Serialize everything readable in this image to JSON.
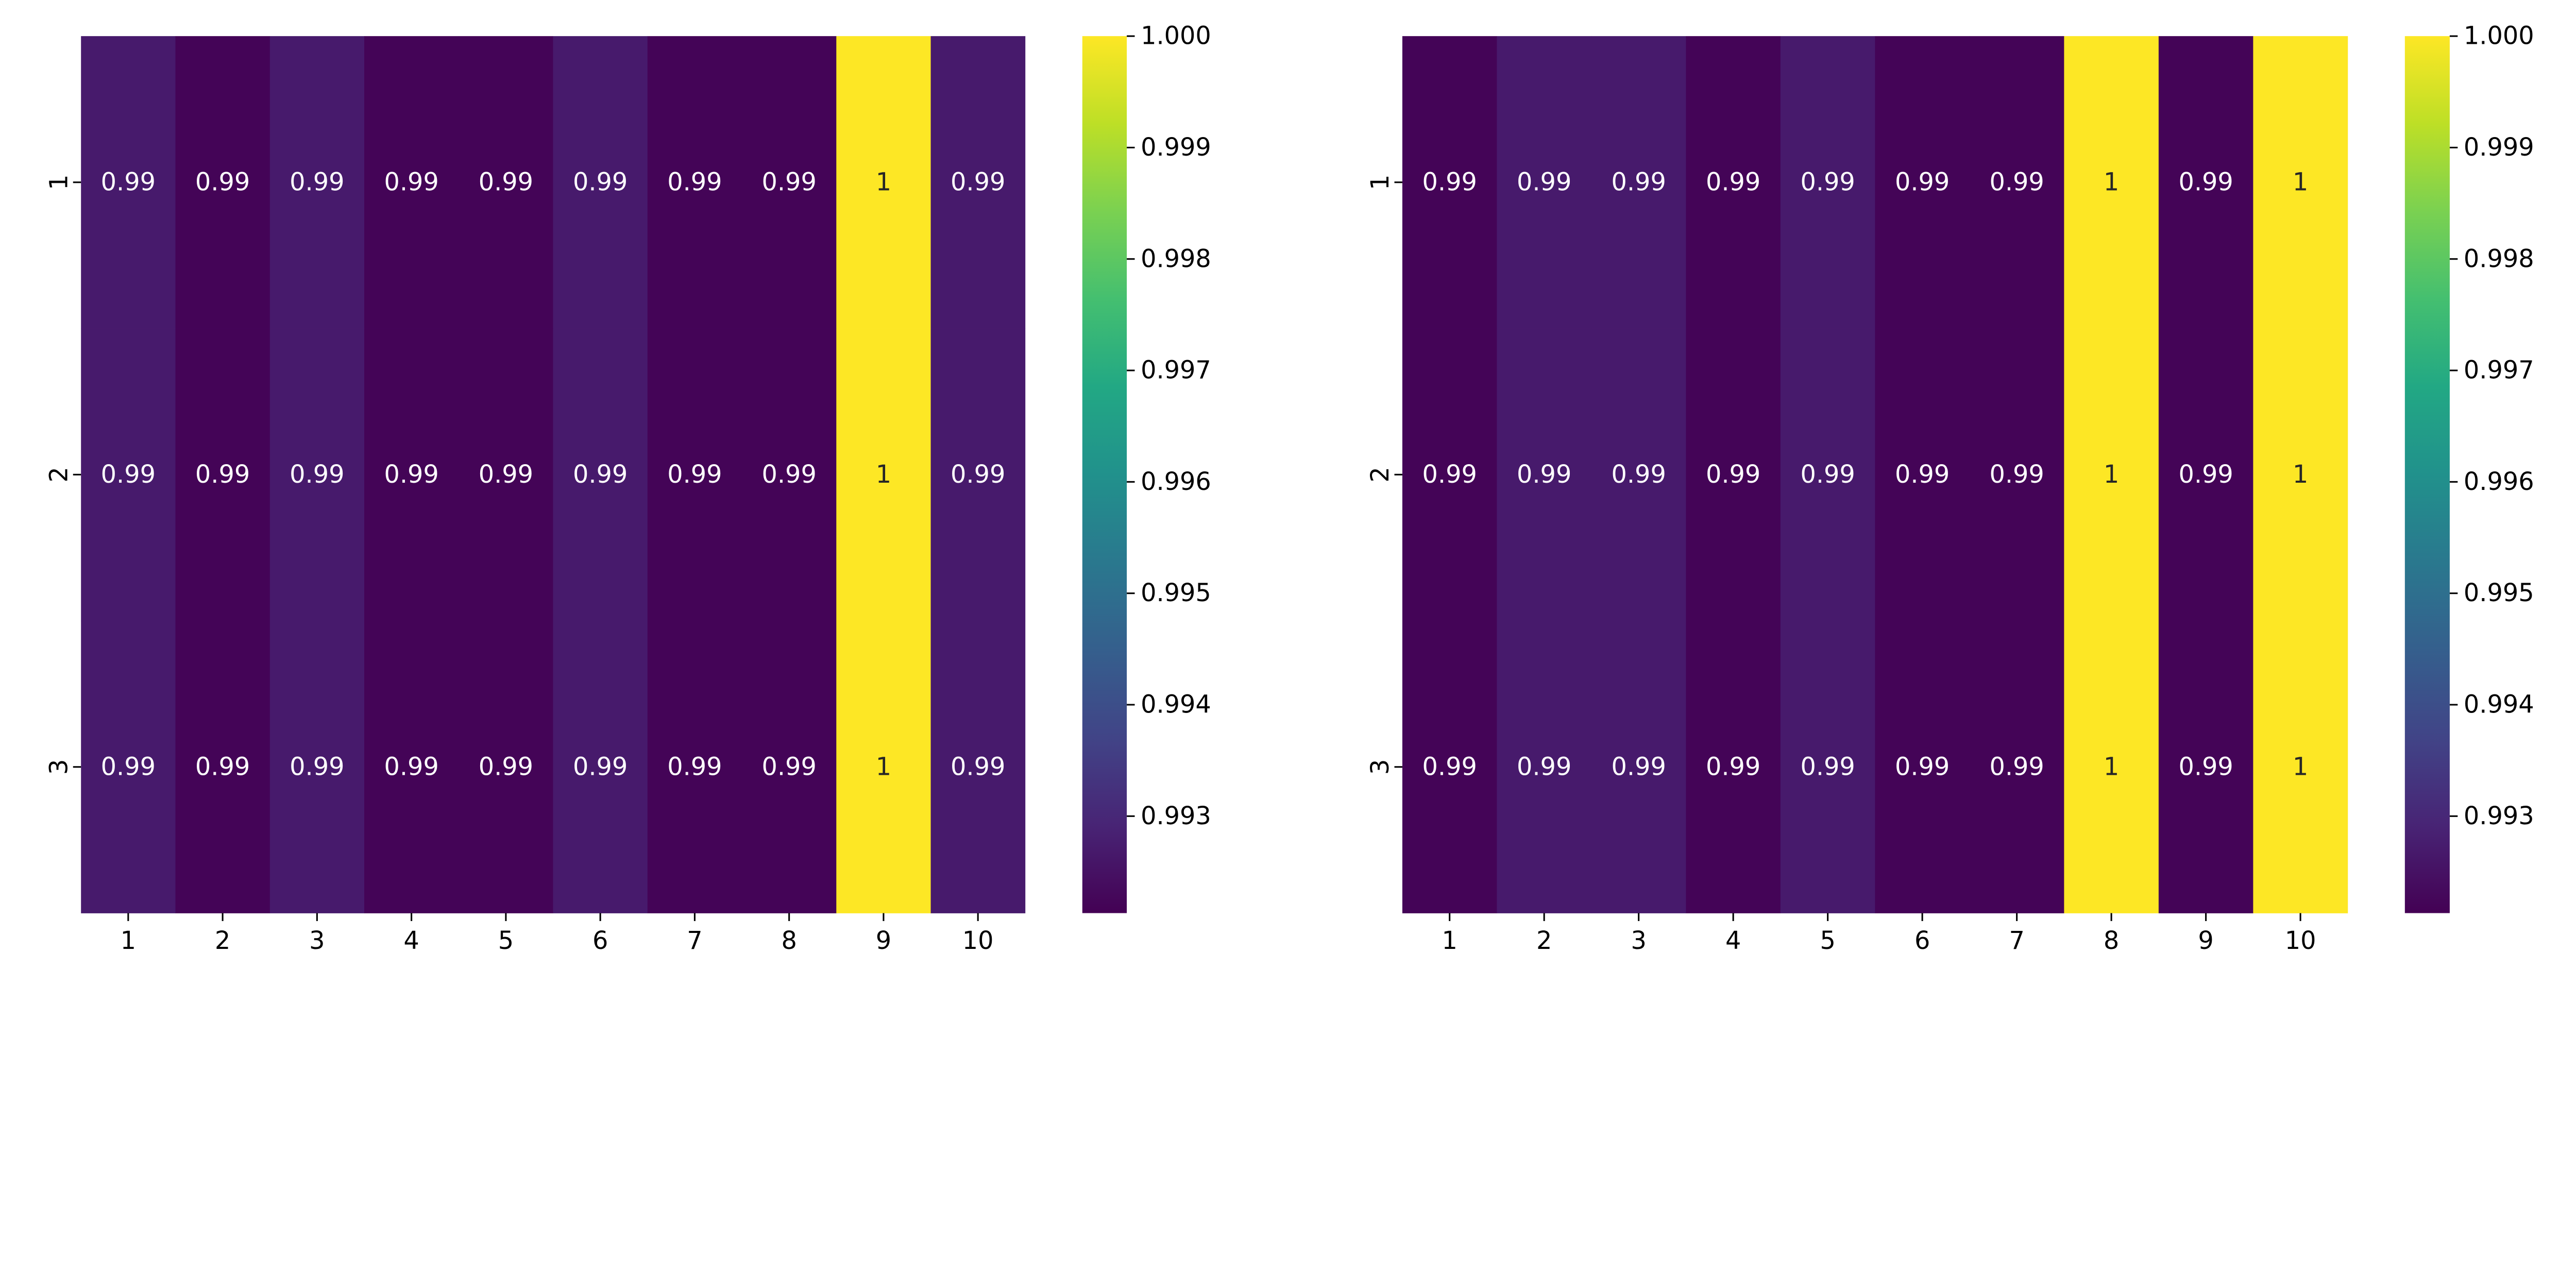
{
  "chart_data": [
    {
      "type": "heatmap",
      "colormap": "viridis",
      "x_tick_labels": [
        "1",
        "2",
        "3",
        "4",
        "5",
        "6",
        "7",
        "8",
        "9",
        "10"
      ],
      "y_tick_labels": [
        "1",
        "2",
        "3"
      ],
      "values": [
        [
          0.9927,
          0.9922,
          0.9927,
          0.9922,
          0.9922,
          0.9927,
          0.9922,
          0.9922,
          1.0,
          0.9927
        ],
        [
          0.9927,
          0.9922,
          0.9927,
          0.9922,
          0.9922,
          0.9927,
          0.9922,
          0.9922,
          1.0,
          0.9927
        ],
        [
          0.9927,
          0.9922,
          0.9927,
          0.9922,
          0.9922,
          0.9927,
          0.9922,
          0.9922,
          1.0,
          0.9927
        ]
      ],
      "annotations": [
        [
          "0.99",
          "0.99",
          "0.99",
          "0.99",
          "0.99",
          "0.99",
          "0.99",
          "0.99",
          "1",
          "0.99"
        ],
        [
          "0.99",
          "0.99",
          "0.99",
          "0.99",
          "0.99",
          "0.99",
          "0.99",
          "0.99",
          "1",
          "0.99"
        ],
        [
          "0.99",
          "0.99",
          "0.99",
          "0.99",
          "0.99",
          "0.99",
          "0.99",
          "0.99",
          "1",
          "0.99"
        ]
      ],
      "colorbar": {
        "range": [
          0.99213,
          1.0
        ],
        "ticks": [
          1.0,
          0.999,
          0.998,
          0.997,
          0.996,
          0.995,
          0.994,
          0.993
        ],
        "tick_labels": [
          "1.000",
          "0.999",
          "0.998",
          "0.997",
          "0.996",
          "0.995",
          "0.994",
          "0.993"
        ]
      }
    },
    {
      "type": "heatmap",
      "colormap": "viridis",
      "x_tick_labels": [
        "1",
        "2",
        "3",
        "4",
        "5",
        "6",
        "7",
        "8",
        "9",
        "10"
      ],
      "y_tick_labels": [
        "1",
        "2",
        "3"
      ],
      "values": [
        [
          0.9922,
          0.9927,
          0.9927,
          0.9922,
          0.9927,
          0.9922,
          0.9922,
          1.0,
          0.9922,
          1.0
        ],
        [
          0.9922,
          0.9927,
          0.9927,
          0.9922,
          0.9927,
          0.9922,
          0.9922,
          1.0,
          0.9922,
          1.0
        ],
        [
          0.9922,
          0.9927,
          0.9927,
          0.9922,
          0.9927,
          0.9922,
          0.9922,
          1.0,
          0.9922,
          1.0
        ]
      ],
      "annotations": [
        [
          "0.99",
          "0.99",
          "0.99",
          "0.99",
          "0.99",
          "0.99",
          "0.99",
          "1",
          "0.99",
          "1"
        ],
        [
          "0.99",
          "0.99",
          "0.99",
          "0.99",
          "0.99",
          "0.99",
          "0.99",
          "1",
          "0.99",
          "1"
        ],
        [
          "0.99",
          "0.99",
          "0.99",
          "0.99",
          "0.99",
          "0.99",
          "0.99",
          "1",
          "0.99",
          "1"
        ]
      ],
      "colorbar": {
        "range": [
          0.99213,
          1.0
        ],
        "ticks": [
          1.0,
          0.999,
          0.998,
          0.997,
          0.996,
          0.995,
          0.994,
          0.993
        ],
        "tick_labels": [
          "1.000",
          "0.999",
          "0.998",
          "0.997",
          "0.996",
          "0.995",
          "0.994",
          "0.993"
        ]
      }
    }
  ]
}
